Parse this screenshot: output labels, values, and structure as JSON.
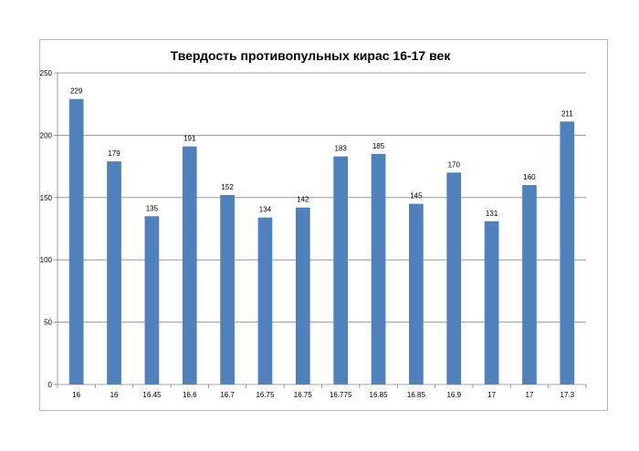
{
  "chart_data": {
    "type": "bar",
    "title": "Твердость противопульных кирас 16-17 век",
    "categories": [
      "16",
      "16",
      "16.45",
      "16.6",
      "16.7",
      "16.75",
      "16.75",
      "16.775",
      "16.85",
      "16.85",
      "16.9",
      "17",
      "17",
      "17.3"
    ],
    "values": [
      229,
      179,
      135,
      191,
      152,
      134,
      142,
      183,
      185,
      145,
      170,
      131,
      160,
      211
    ],
    "ylim": [
      0,
      250
    ],
    "yticks": [
      0,
      50,
      100,
      150,
      200,
      250
    ],
    "grid": true,
    "legend": "none",
    "bar_color": "#4f81bd",
    "grid_color": "#868686"
  }
}
